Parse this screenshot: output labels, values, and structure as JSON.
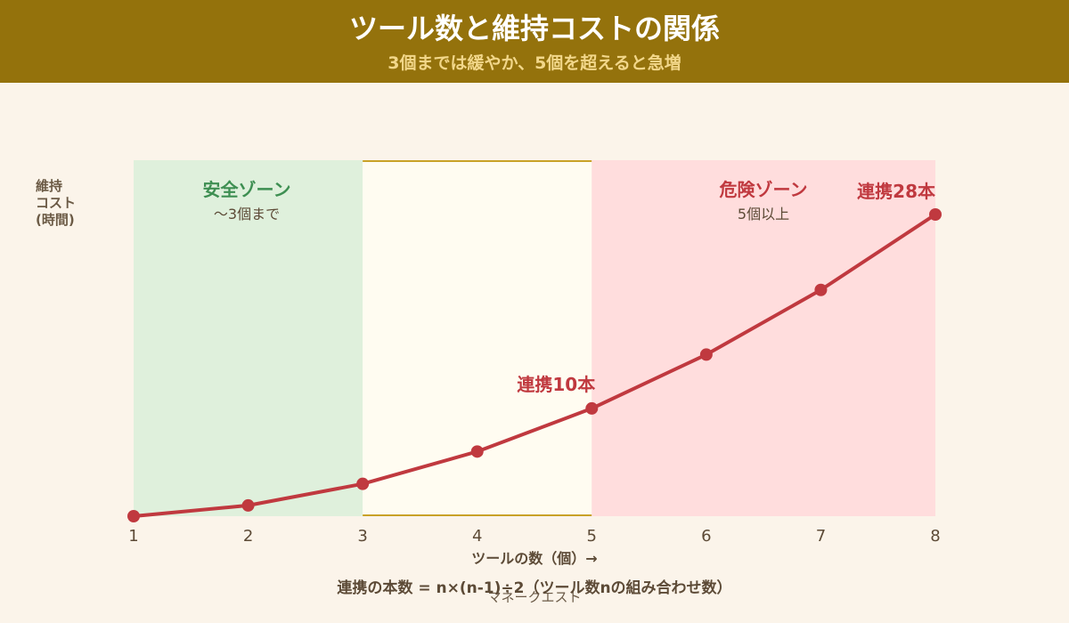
{
  "header": {
    "title": "ツール数と維持コストの関係",
    "subtitle": "3個までは緩やか、5個を超えると急増"
  },
  "colors": {
    "header_bg": "#94720C",
    "line": "#C0393F",
    "safe_zone": "#DFF0DC",
    "mid_zone": "#FFFCF1",
    "danger_zone": "#FFDDDD",
    "safe_text": "#3E8F52",
    "danger_text": "#C0393F"
  },
  "chart_data": {
    "type": "line",
    "x": [
      1,
      2,
      3,
      4,
      5,
      6,
      7,
      8
    ],
    "series": [
      {
        "values": [
          0,
          1,
          3,
          6,
          10,
          15,
          21,
          28
        ]
      }
    ],
    "xlabel": "ツールの数（個）→",
    "ylabel_lines": [
      "維持",
      "コスト",
      "(時間)"
    ],
    "xlim": [
      1,
      8
    ],
    "ylim": [
      0,
      28
    ],
    "zones": [
      {
        "name": "安全ゾーン",
        "note": "〜3個まで",
        "from": 1,
        "to": 3
      },
      {
        "name": "",
        "note": "",
        "from": 3,
        "to": 5
      },
      {
        "name": "危険ゾーン",
        "note": "5個以上",
        "from": 5,
        "to": 8
      }
    ],
    "annotations": [
      {
        "text": "連携10本",
        "x": 5,
        "y": 10
      },
      {
        "text": "連携28本",
        "x": 8,
        "y": 28
      }
    ],
    "grid": false,
    "legend": "none"
  },
  "footer": {
    "formula": "連携の本数 = n×(n-1)÷2（ツール数nの組み合わせ数）",
    "watermark": "マネークエスト"
  }
}
